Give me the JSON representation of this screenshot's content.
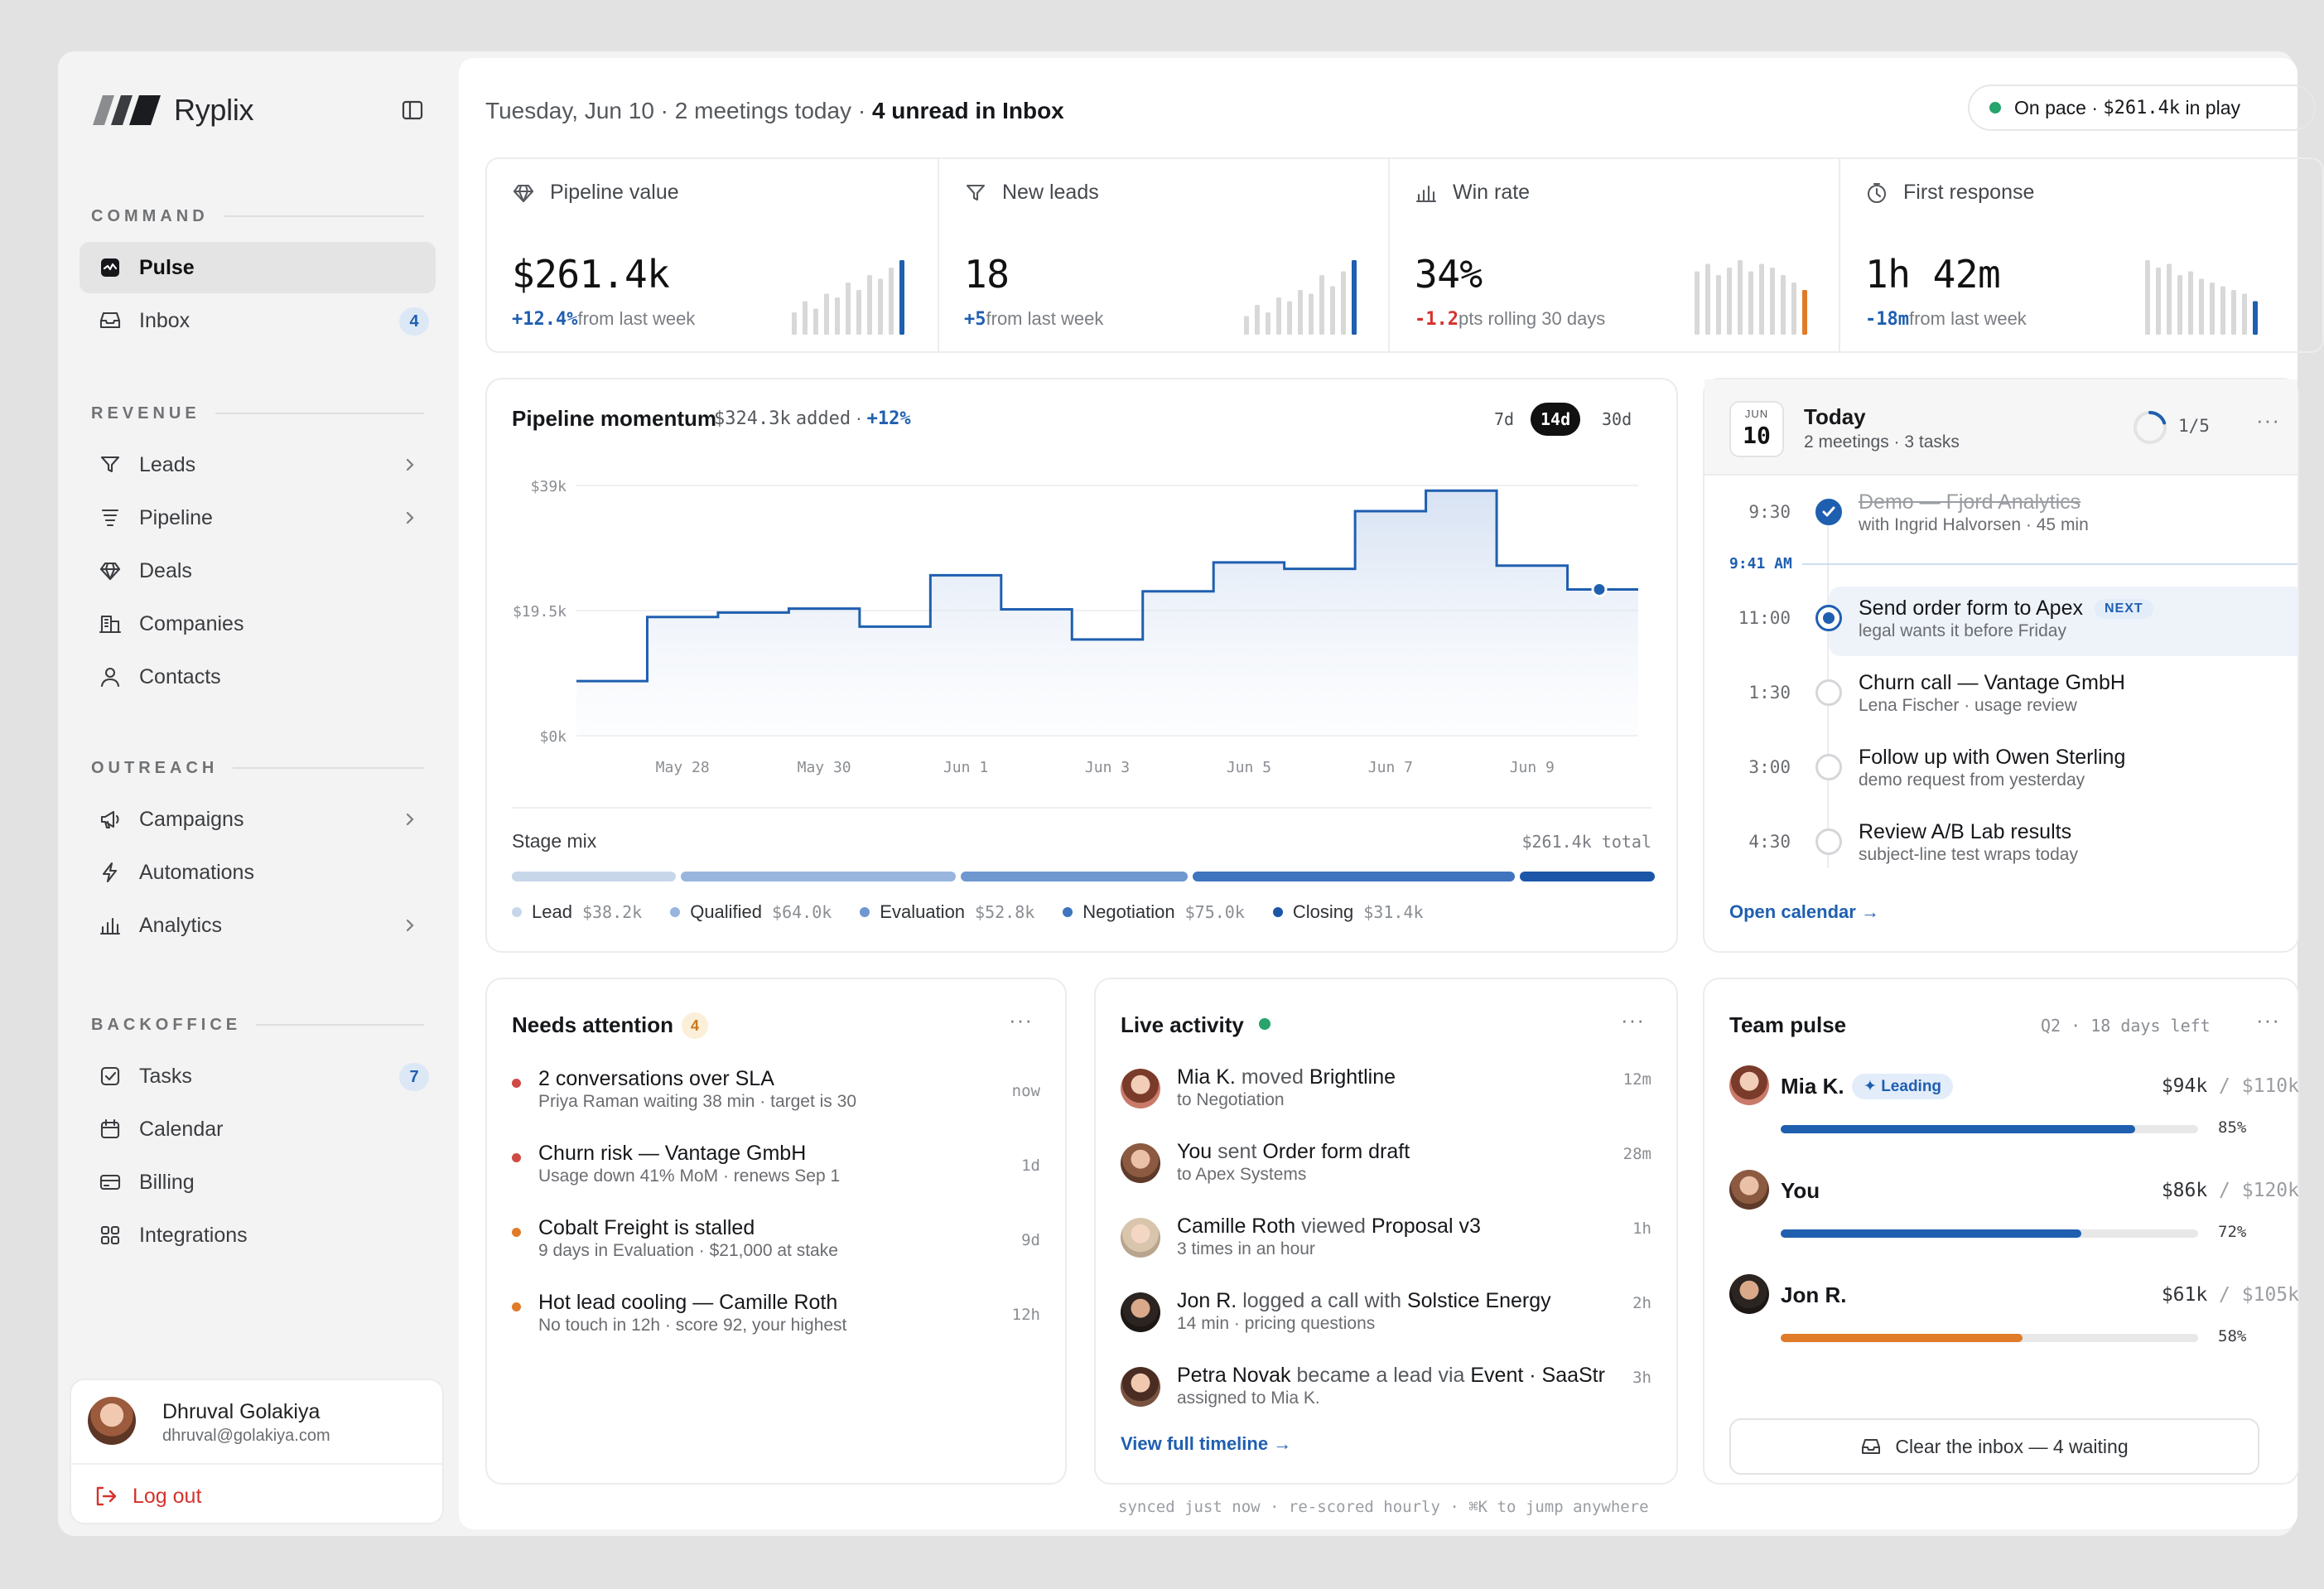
{
  "app": {
    "name": "Ryplix",
    "collapse_icon": "sidebar-toggle-icon"
  },
  "sidebar": {
    "sections": [
      {
        "title": "COMMAND",
        "items": [
          {
            "label": "Pulse",
            "icon": "pulse-icon",
            "active": true
          },
          {
            "label": "Inbox",
            "icon": "inbox-icon",
            "badge": "4"
          }
        ]
      },
      {
        "title": "REVENUE",
        "items": [
          {
            "label": "Leads",
            "icon": "filter-icon",
            "chevron": true
          },
          {
            "label": "Pipeline",
            "icon": "pipeline-icon",
            "chevron": true
          },
          {
            "label": "Deals",
            "icon": "diamond-icon"
          },
          {
            "label": "Companies",
            "icon": "building-icon"
          },
          {
            "label": "Contacts",
            "icon": "person-icon"
          }
        ]
      },
      {
        "title": "OUTREACH",
        "items": [
          {
            "label": "Campaigns",
            "icon": "megaphone-icon",
            "chevron": true
          },
          {
            "label": "Automations",
            "icon": "bolt-icon"
          },
          {
            "label": "Analytics",
            "icon": "bar-chart-icon",
            "chevron": true
          }
        ]
      },
      {
        "title": "BACKOFFICE",
        "items": [
          {
            "label": "Tasks",
            "icon": "checkbox-icon",
            "badge": "7"
          },
          {
            "label": "Calendar",
            "icon": "calendar-icon"
          },
          {
            "label": "Billing",
            "icon": "credit-card-icon"
          },
          {
            "label": "Integrations",
            "icon": "grid-icon"
          }
        ]
      }
    ],
    "user": {
      "name": "Dhruval Golakiya",
      "email": "dhruval@golakiya.com",
      "logout_label": "Log out"
    }
  },
  "header": {
    "date": "Tuesday, Jun 10",
    "meetings": "2 meetings today",
    "unread": "4 unread in Inbox",
    "separator": " · ",
    "pace_label": "On pace ·",
    "pace_value": "$261.4k",
    "pace_suffix": "in play",
    "pace_color": "#27a36b"
  },
  "kpis": [
    {
      "label": "Pipeline value",
      "icon": "diamond-icon",
      "value": "$261.4k",
      "delta": "+12.4%",
      "delta_text": "from last week",
      "trend": "pos",
      "accent": "#1f5fb0",
      "bars": [
        0.3,
        0.45,
        0.35,
        0.55,
        0.5,
        0.7,
        0.6,
        0.8,
        0.75,
        0.9,
        1.0
      ]
    },
    {
      "label": "New leads",
      "icon": "filter-icon",
      "value": "18",
      "delta": "+5",
      "delta_text": "from last week",
      "trend": "pos",
      "accent": "#1f5fb0",
      "bars": [
        0.25,
        0.4,
        0.3,
        0.5,
        0.45,
        0.6,
        0.55,
        0.8,
        0.65,
        0.85,
        1.0
      ]
    },
    {
      "label": "Win rate",
      "icon": "bar-chart-icon",
      "value": "34%",
      "delta": "-1.2",
      "delta_text": "pts rolling 30 days",
      "trend": "neg",
      "accent": "#e07b29",
      "bars": [
        0.85,
        0.95,
        0.8,
        0.9,
        1.0,
        0.85,
        0.95,
        0.9,
        0.8,
        0.7,
        0.6
      ]
    },
    {
      "label": "First response",
      "icon": "clock-icon",
      "value": "1h 42m",
      "delta": "-18m",
      "delta_text": "from last week",
      "trend": "pos",
      "accent": "#1f5fb0",
      "bars": [
        1.0,
        0.9,
        0.95,
        0.8,
        0.85,
        0.75,
        0.7,
        0.65,
        0.6,
        0.55,
        0.45
      ]
    }
  ],
  "momentum": {
    "title": "Pipeline momentum",
    "added": "$324.3k",
    "added_suffix": "added",
    "delta": "+12%",
    "ranges": [
      "7d",
      "14d",
      "30d"
    ],
    "active_range": "14d",
    "stage_title": "Stage mix",
    "stage_total": "$261.4k total",
    "stages": [
      {
        "name": "Lead",
        "value": "$38.2k",
        "amount": 38.2,
        "color": "#c8d6ea"
      },
      {
        "name": "Qualified",
        "value": "$64.0k",
        "amount": 64.0,
        "color": "#98b5de"
      },
      {
        "name": "Evaluation",
        "value": "$52.8k",
        "amount": 52.8,
        "color": "#6f97d0"
      },
      {
        "name": "Negotiation",
        "value": "$75.0k",
        "amount": 75.0,
        "color": "#3f74bf"
      },
      {
        "name": "Closing",
        "value": "$31.4k",
        "amount": 31.4,
        "color": "#1c56a8"
      }
    ]
  },
  "chart_data": {
    "type": "area",
    "step": true,
    "x": [
      "May 27",
      "May 28",
      "May 29",
      "May 30",
      "May 31",
      "Jun 1",
      "Jun 2",
      "Jun 3",
      "Jun 4",
      "Jun 5",
      "Jun 6",
      "Jun 7",
      "Jun 8",
      "Jun 9",
      "Jun 10"
    ],
    "x_ticks": [
      "May 28",
      "May 30",
      "Jun 1",
      "Jun 3",
      "Jun 5",
      "Jun 7",
      "Jun 9"
    ],
    "series": [
      {
        "values": [
          8.5,
          18.5,
          19.2,
          19.8,
          17.0,
          25.0,
          19.7,
          15.0,
          22.5,
          27.0,
          26.0,
          35.0,
          38.2,
          26.5,
          22.8
        ]
      }
    ],
    "ylim": [
      0,
      39
    ],
    "y_ticks": [
      "$0k",
      "$19.5k",
      "$39k"
    ],
    "grid": true,
    "marker": {
      "x": "Jun 10",
      "value": 22.8
    },
    "color": "#1f5fb0"
  },
  "today": {
    "month": "JUN",
    "day": "10",
    "title": "Today",
    "subtitle": "2 meetings · 3 tasks",
    "progress": "1/5",
    "progress_fraction": 0.2,
    "now_label": "9:41 AM",
    "events": [
      {
        "time": "9:30",
        "title": "Demo — Fjord Analytics",
        "sub": "with Ingrid Halvorsen · 45 min",
        "state": "done"
      },
      {
        "time": "11:00",
        "title": "Send order form to Apex",
        "tag": "NEXT",
        "sub": "legal wants it before Friday",
        "state": "next"
      },
      {
        "time": "1:30",
        "title": "Churn call — Vantage GmbH",
        "sub": "Lena Fischer · usage review",
        "state": "open"
      },
      {
        "time": "3:00",
        "title": "Follow up with Owen Sterling",
        "sub": "demo request from yesterday",
        "state": "open"
      },
      {
        "time": "4:30",
        "title": "Review A/B Lab results",
        "sub": "subject-line test wraps today",
        "state": "open"
      }
    ],
    "link": "Open calendar →"
  },
  "attention": {
    "title": "Needs attention",
    "count": "4",
    "items": [
      {
        "title": "2 conversations over SLA",
        "sub": "Priya Raman waiting 38 min · target is 30",
        "time": "now",
        "color": "#d04a45"
      },
      {
        "title": "Churn risk — Vantage GmbH",
        "sub": "Usage down 41% MoM · renews Sep 1",
        "time": "1d",
        "color": "#d04a45"
      },
      {
        "title": "Cobalt Freight is stalled",
        "sub": "9 days in Evaluation · $21,000 at stake",
        "time": "9d",
        "color": "#e07b29"
      },
      {
        "title": "Hot lead cooling — Camille Roth",
        "sub": "No touch in 12h · score 92, your highest",
        "time": "12h",
        "color": "#e07b29"
      }
    ]
  },
  "activity": {
    "title": "Live activity",
    "items": [
      {
        "who": "Mia K.",
        "verb": "moved",
        "obj": "Brightline",
        "sub": "to Negotiation",
        "time": "12m"
      },
      {
        "who": "You",
        "verb": "sent",
        "obj": "Order form draft",
        "sub": "to Apex Systems",
        "time": "28m"
      },
      {
        "who": "Camille Roth",
        "verb": "viewed",
        "obj": "Proposal v3",
        "sub": "3 times in an hour",
        "time": "1h"
      },
      {
        "who": "Jon R.",
        "verb": "logged a call with",
        "obj": "Solstice Energy",
        "sub": "14 min · pricing questions",
        "time": "2h"
      },
      {
        "who": "Petra Novak",
        "verb": "became a lead via",
        "obj": "Event · SaaStr",
        "sub": "assigned to Mia K.",
        "time": "3h"
      }
    ],
    "link": "View full timeline →"
  },
  "team": {
    "title": "Team pulse",
    "period": "Q2 · 18 days left",
    "leading_label": "✦ Leading",
    "members": [
      {
        "name": "Mia K.",
        "amount": "$94k",
        "target": "$110k",
        "pct": "85%",
        "fraction": 0.85,
        "color": "#1f5fb0",
        "leading": true
      },
      {
        "name": "You",
        "amount": "$86k",
        "target": "$120k",
        "pct": "72%",
        "fraction": 0.72,
        "color": "#1f5fb0"
      },
      {
        "name": "Jon R.",
        "amount": "$61k",
        "target": "$105k",
        "pct": "58%",
        "fraction": 0.58,
        "color": "#e07b29"
      }
    ],
    "clear_label": "Clear the inbox — 4 waiting"
  },
  "footer": "synced just now · re-scored hourly · ⌘K to jump anywhere",
  "colors": {
    "accent": "#1f5fb0",
    "warning": "#e07b29",
    "danger": "#d5322d",
    "success": "#27a36b"
  }
}
